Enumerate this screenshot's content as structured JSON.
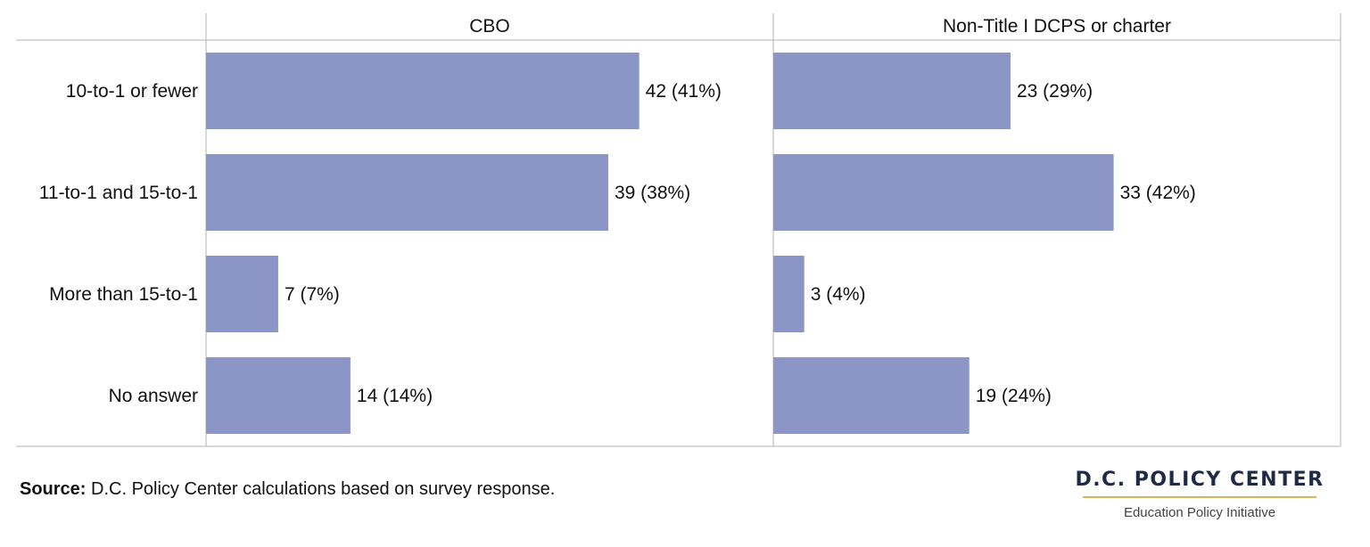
{
  "chart_data": {
    "type": "bar",
    "orientation": "horizontal",
    "categories": [
      "10-to-1 or fewer",
      "11-to-1 and 15-to-1",
      "More than 15-to-1",
      "No answer"
    ],
    "panels": [
      {
        "name": "CBO",
        "values": [
          42,
          39,
          7,
          14
        ],
        "labels": [
          "42 (41%)",
          "39 (38%)",
          "7 (7%)",
          "14 (14%)"
        ]
      },
      {
        "name": "Non-Title I DCPS or charter",
        "values": [
          23,
          33,
          3,
          19
        ],
        "labels": [
          "23 (29%)",
          "33 (42%)",
          "3 (4%)",
          "19 (24%)"
        ]
      }
    ],
    "xlim": [
      0,
      55
    ],
    "bar_color": "#8b96c6",
    "grid": false
  },
  "footer": {
    "source_label": "Source:",
    "source_text": " D.C. Policy Center calculations based on survey response."
  },
  "brand": {
    "name": "D.C. POLICY CENTER",
    "subtitle": "Education Policy Initiative",
    "accent_color": "#d8b45a"
  }
}
